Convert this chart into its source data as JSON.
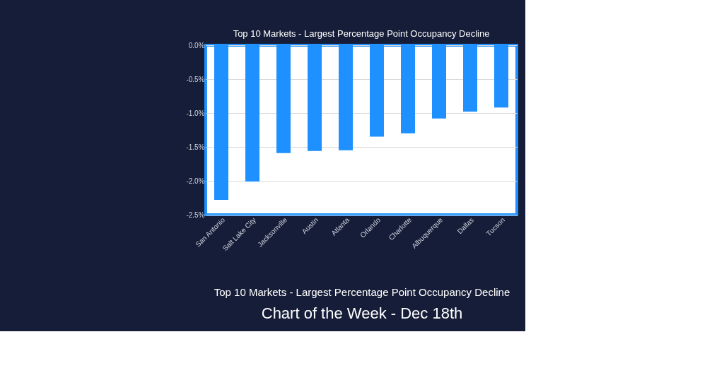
{
  "chart_data": {
    "type": "bar",
    "title": "Top 10 Markets - Largest Percentage Point Occupancy Decline",
    "categories": [
      "San Antonio",
      "Salt Lake City",
      "Jacksonville",
      "Austin",
      "Atlanta",
      "Orlando",
      "Charlotte",
      "Albuquerque",
      "Dallas",
      "Tucson"
    ],
    "values": [
      -2.28,
      -2.01,
      -1.59,
      -1.56,
      -1.55,
      -1.35,
      -1.3,
      -1.08,
      -0.98,
      -0.92
    ],
    "color": "#1e90ff",
    "ylim": [
      -2.5,
      0
    ],
    "yticks": [
      {
        "value": 0,
        "label": "0.0%"
      },
      {
        "value": -0.5,
        "label": "-0.5%"
      },
      {
        "value": -1.0,
        "label": "-1.0%"
      },
      {
        "value": -1.5,
        "label": "-1.5%"
      },
      {
        "value": -2.0,
        "label": "-2.0%"
      },
      {
        "value": -2.5,
        "label": "-2.5%"
      }
    ],
    "grid": "y",
    "annotations": [
      "Top 10 Markets - Largest Percentage Point Occupancy Decline",
      "Chart of the Week - Dec 18th"
    ]
  }
}
